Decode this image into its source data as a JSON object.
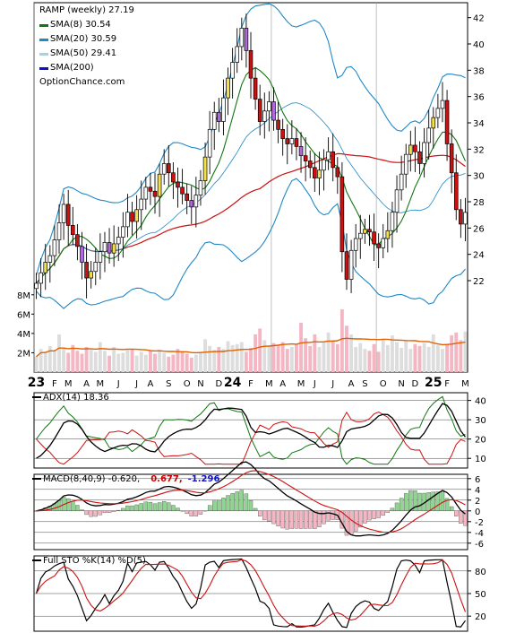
{
  "header": {
    "symbol_line": "RAMP (weekly) 27.19",
    "source": "OptionChance.com",
    "legend": [
      {
        "label": "SMA(8) 30.54",
        "color": "#117711"
      },
      {
        "label": "SMA(20) 30.59",
        "color": "#1E88C8"
      },
      {
        "label": "SMA(50) 29.41",
        "color": "#9DD4F0"
      },
      {
        "label": "SMA(200)",
        "color": "#1010CC"
      }
    ]
  },
  "panels": {
    "adx": {
      "title": "ADX(14) 18.36"
    },
    "macd": {
      "title": "MACD(8,40,9) -0.620,",
      "value1": "0.677,",
      "value2": "-1.296",
      "value1_color": "#CC0000",
      "value2_color": "#1010CC"
    },
    "sto": {
      "title": "Full STO %K(14) %D(5)"
    }
  },
  "chart_data": {
    "type": "candlestick",
    "title": "RAMP (weekly) 27.19",
    "x_ticks": [
      "23",
      "F",
      "M",
      "A",
      "M",
      "J",
      "J",
      "A",
      "S",
      "O",
      "N",
      "D",
      "24",
      "F",
      "M",
      "A",
      "M",
      "J",
      "J",
      "A",
      "S",
      "O",
      "N",
      "D",
      "25",
      "F",
      "M"
    ],
    "price_axis": {
      "ticks": [
        22,
        24,
        26,
        28,
        30,
        32,
        34,
        36,
        38,
        40,
        42
      ],
      "range": [
        20.5,
        43
      ]
    },
    "volume_axis": {
      "ticks": [
        "2M",
        "4M",
        "6M",
        "8M"
      ],
      "range": [
        0,
        9
      ]
    },
    "close_approx": [
      21.8,
      22.6,
      23.4,
      23.9,
      25.1,
      26.4,
      27.8,
      26.2,
      25.5,
      24.6,
      23.4,
      22.2,
      22.7,
      23.4,
      24.2,
      24.9,
      24.1,
      24.8,
      25.3,
      26.1,
      27.2,
      26.5,
      27.4,
      28.2,
      29.1,
      28.8,
      28.4,
      30.1,
      30.9,
      30.2,
      29.5,
      29.1,
      28.6,
      28.1,
      27.6,
      28.5,
      29.6,
      31.4,
      33.5,
      34.8,
      34.1,
      35.9,
      37.4,
      38.6,
      39.8,
      41.2,
      39.5,
      37.4,
      35.8,
      34.1,
      34.9,
      35.6,
      34.2,
      33.5,
      32.8,
      32.4,
      32.8,
      32.2,
      31.5,
      31.1,
      30.6,
      29.8,
      30.4,
      31.2,
      31.8,
      30.6,
      29.9,
      24.2,
      22.1,
      24.3,
      25.2,
      25.6,
      25.9,
      25.7,
      24.8,
      24.5,
      25.2,
      25.8,
      27.2,
      28.9,
      30.1,
      31.6,
      32.3,
      31.8,
      30.9,
      32.5,
      33.6,
      34.4,
      35.1,
      35.7,
      32.4,
      30.2,
      27.4,
      26.3,
      27.19
    ],
    "volume_millions_approx": [
      1.6,
      2.4,
      2.1,
      2.7,
      2.2,
      3.9,
      2.5,
      2.0,
      2.8,
      2.2,
      1.9,
      2.6,
      2.3,
      2.1,
      3.1,
      2.2,
      1.7,
      2.6,
      1.9,
      2.0,
      2.3,
      2.4,
      1.7,
      2.1,
      1.8,
      2.2,
      1.9,
      2.3,
      2.0,
      1.6,
      1.8,
      2.4,
      2.1,
      1.9,
      1.5,
      1.8,
      2.1,
      3.4,
      2.7,
      2.3,
      2.6,
      2.4,
      3.2,
      2.8,
      2.9,
      3.1,
      2.1,
      2.5,
      3.9,
      4.5,
      3.3,
      2.7,
      3.0,
      2.8,
      3.1,
      2.4,
      2.6,
      2.9,
      5.1,
      3.5,
      2.7,
      3.9,
      2.6,
      3.2,
      4.1,
      3.3,
      2.9,
      6.5,
      4.8,
      3.9,
      2.6,
      3.0,
      2.4,
      2.2,
      2.9,
      2.1,
      3.4,
      2.8,
      3.8,
      3.1,
      2.5,
      3.3,
      2.4,
      2.9,
      2.7,
      3.0,
      2.6,
      3.9,
      2.8,
      2.4,
      2.9,
      3.8,
      4.1,
      3.3,
      4.2
    ],
    "macd_axis": {
      "ticks": [
        6,
        4,
        2,
        0,
        -2,
        -4,
        -6
      ],
      "range": [
        -7.2,
        6.8
      ]
    },
    "adx_axis": {
      "ticks": [
        40,
        30,
        20,
        10
      ],
      "range": [
        5,
        44
      ]
    },
    "sto_axis": {
      "ticks": [
        80,
        50,
        20
      ],
      "range": [
        0,
        100
      ]
    }
  }
}
